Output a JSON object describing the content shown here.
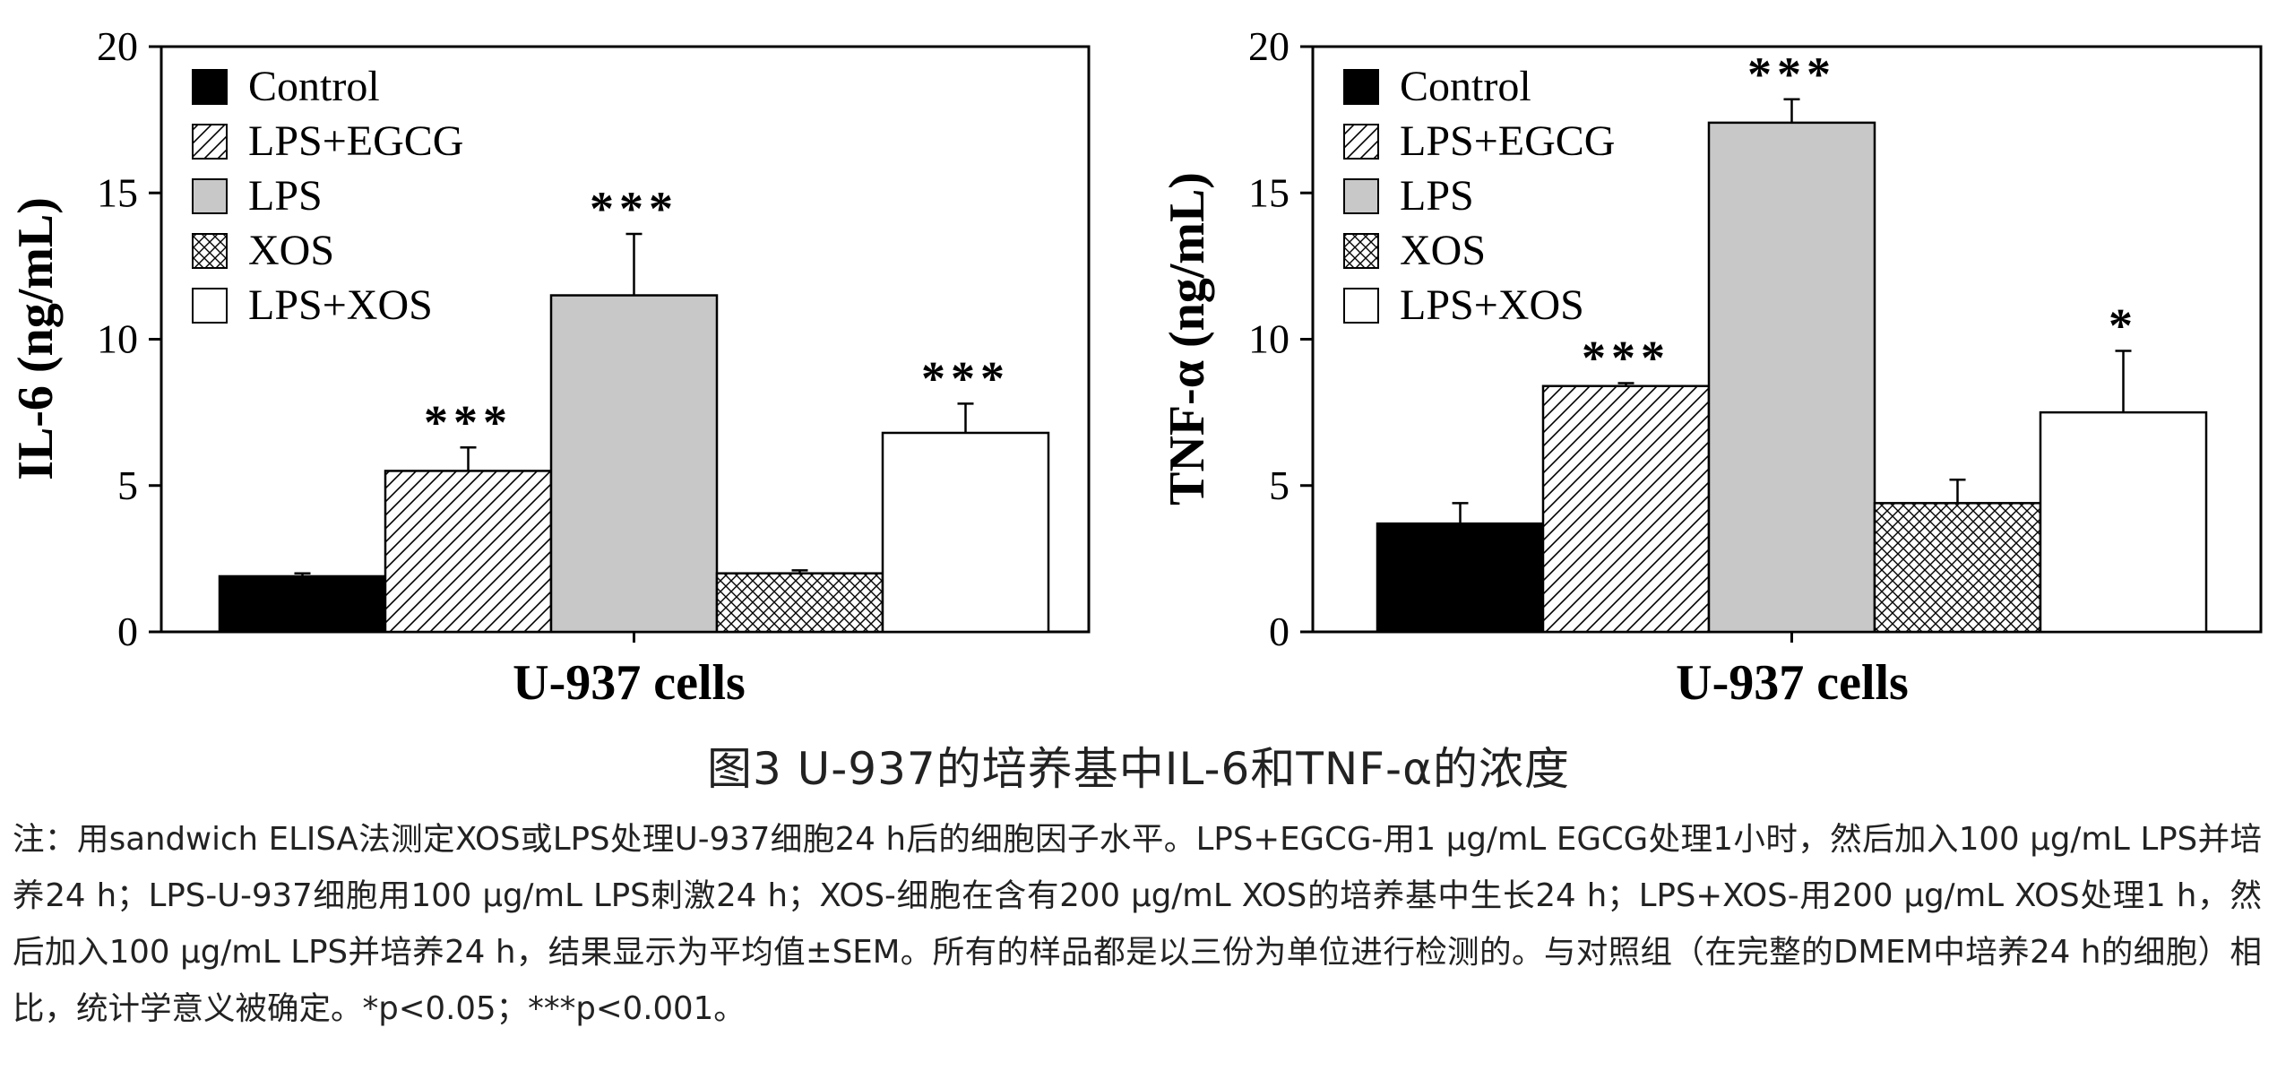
{
  "chart_data": [
    {
      "type": "bar",
      "ylabel": "IL-6 (ng/mL)",
      "xlabel": "U-937 cells",
      "ylim": [
        0,
        20
      ],
      "yticks": [
        "0",
        "5",
        "10",
        "15",
        "20"
      ],
      "legend_position": "top-left",
      "series": [
        {
          "name": "Control",
          "value": 1.9,
          "error": 0.1,
          "sig": ""
        },
        {
          "name": "LPS+EGCG",
          "value": 5.5,
          "error": 0.8,
          "sig": "***"
        },
        {
          "name": "LPS",
          "value": 11.5,
          "error": 2.1,
          "sig": "***"
        },
        {
          "name": "XOS",
          "value": 2.0,
          "error": 0.1,
          "sig": ""
        },
        {
          "name": "LPS+XOS",
          "value": 6.8,
          "error": 1.0,
          "sig": "***"
        }
      ]
    },
    {
      "type": "bar",
      "ylabel": "TNF-α (ng/mL)",
      "xlabel": "U-937 cells",
      "ylim": [
        0,
        20
      ],
      "yticks": [
        "0",
        "5",
        "10",
        "15",
        "20"
      ],
      "legend_position": "top-left",
      "series": [
        {
          "name": "Control",
          "value": 3.7,
          "error": 0.7,
          "sig": ""
        },
        {
          "name": "LPS+EGCG",
          "value": 8.4,
          "error": 0.1,
          "sig": "***"
        },
        {
          "name": "LPS",
          "value": 17.4,
          "error": 0.8,
          "sig": "***"
        },
        {
          "name": "XOS",
          "value": 4.4,
          "error": 0.8,
          "sig": ""
        },
        {
          "name": "LPS+XOS",
          "value": 7.5,
          "error": 2.1,
          "sig": "*"
        }
      ]
    }
  ],
  "caption": "图3 U-937的培养基中IL-6和TNF-α的浓度",
  "note": "注：用sandwich ELISA法测定XOS或LPS处理U-937细胞24 h后的细胞因子水平。LPS+EGCG-用1 μg/mL EGCG处理1小时，然后加入100 μg/mL LPS并培养24 h；LPS-U-937细胞用100 μg/mL LPS刺激24 h；XOS-细胞在含有200 μg/mL XOS的培养基中生长24 h；LPS+XOS-用200 μg/mL XOS处理1 h，然后加入100 μg/mL LPS并培养24 h，结果显示为平均值±SEM。所有的样品都是以三份为单位进行检测的。与对照组（在完整的DMEM中培养24 h的细胞）相比，统计学意义被确定。*p<0.05；***p<0.001。"
}
